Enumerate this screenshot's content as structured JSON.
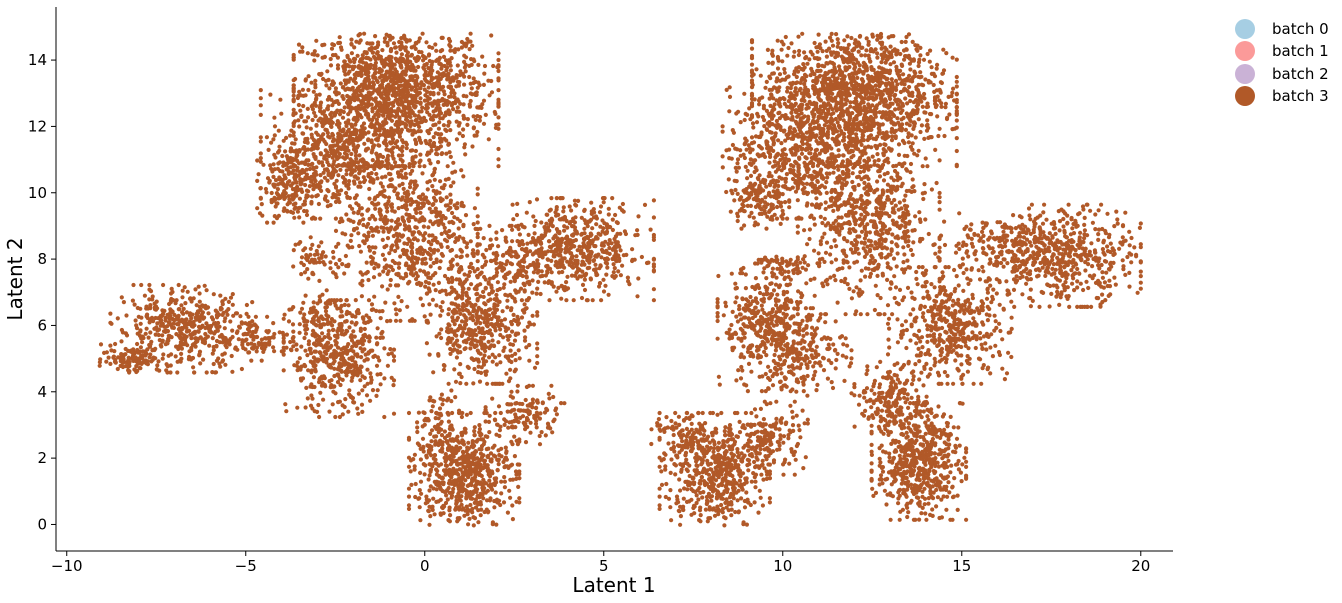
{
  "chart_data": {
    "type": "scatter",
    "title": "",
    "xlabel": "Latent 1",
    "ylabel": "Latent 2",
    "xlim": [
      -10.3,
      20.9
    ],
    "ylim": [
      -0.8,
      15.6
    ],
    "xticks": [
      -10,
      -5,
      0,
      5,
      10,
      15,
      20
    ],
    "xtick_labels": [
      "−10",
      "−5",
      "0",
      "5",
      "10",
      "15",
      "20"
    ],
    "yticks": [
      0,
      2,
      4,
      6,
      8,
      10,
      12,
      14
    ],
    "ytick_labels": [
      "0",
      "2",
      "4",
      "6",
      "8",
      "10",
      "12",
      "14"
    ],
    "grid": false,
    "legend_position": "top-right, outside plot",
    "series": [
      {
        "name": "batch 0",
        "color": "#a6cee3",
        "points": []
      },
      {
        "name": "batch 1",
        "color": "#fb9a99",
        "points": []
      },
      {
        "name": "batch 2",
        "color": "#cab2d6",
        "points": []
      },
      {
        "name": "batch 3",
        "color": "#b15928",
        "points": [],
        "clusters": [
          {
            "cx": -0.8,
            "cy": 13.0,
            "sx": 1.3,
            "sy": 1.0,
            "n": 1400
          },
          {
            "cx": -2.6,
            "cy": 11.2,
            "sx": 0.9,
            "sy": 0.9,
            "n": 500
          },
          {
            "cx": -3.8,
            "cy": 10.2,
            "sx": 0.4,
            "sy": 0.5,
            "n": 160
          },
          {
            "cx": -0.5,
            "cy": 9.0,
            "sx": 0.9,
            "sy": 1.3,
            "n": 700
          },
          {
            "cx": 4.2,
            "cy": 8.3,
            "sx": 1.0,
            "sy": 0.7,
            "n": 550
          },
          {
            "cx": 2.3,
            "cy": 7.9,
            "sx": 0.7,
            "sy": 0.5,
            "n": 120
          },
          {
            "cx": 1.6,
            "cy": 6.0,
            "sx": 0.7,
            "sy": 0.8,
            "n": 450
          },
          {
            "cx": -6.8,
            "cy": 5.9,
            "sx": 0.9,
            "sy": 0.6,
            "n": 450
          },
          {
            "cx": -8.2,
            "cy": 5.0,
            "sx": 0.4,
            "sy": 0.2,
            "n": 90
          },
          {
            "cx": -4.6,
            "cy": 5.6,
            "sx": 0.6,
            "sy": 0.3,
            "n": 100
          },
          {
            "cx": -2.4,
            "cy": 5.0,
            "sx": 0.7,
            "sy": 0.8,
            "n": 450
          },
          {
            "cx": -3.0,
            "cy": 8.0,
            "sx": 0.4,
            "sy": 0.3,
            "n": 60
          },
          {
            "cx": -2.9,
            "cy": 6.4,
            "sx": 0.4,
            "sy": 0.3,
            "n": 60
          },
          {
            "cx": 1.1,
            "cy": 1.6,
            "sx": 0.7,
            "sy": 0.8,
            "n": 650
          },
          {
            "cx": 2.8,
            "cy": 3.3,
            "sx": 0.5,
            "sy": 0.4,
            "n": 120
          },
          {
            "cx": 0.3,
            "cy": 3.2,
            "sx": 0.3,
            "sy": 0.5,
            "n": 50
          },
          {
            "cx": 12.0,
            "cy": 13.0,
            "sx": 1.3,
            "sy": 1.0,
            "n": 1400
          },
          {
            "cx": 10.3,
            "cy": 11.2,
            "sx": 0.9,
            "sy": 0.9,
            "n": 500
          },
          {
            "cx": 9.3,
            "cy": 9.8,
            "sx": 0.4,
            "sy": 0.4,
            "n": 120
          },
          {
            "cx": 12.4,
            "cy": 9.2,
            "sx": 0.9,
            "sy": 1.3,
            "n": 700
          },
          {
            "cx": 17.8,
            "cy": 8.1,
            "sx": 1.0,
            "sy": 0.7,
            "n": 550
          },
          {
            "cx": 15.8,
            "cy": 8.5,
            "sx": 0.7,
            "sy": 0.4,
            "n": 120
          },
          {
            "cx": 14.7,
            "cy": 6.0,
            "sx": 0.8,
            "sy": 0.8,
            "n": 450
          },
          {
            "cx": 9.5,
            "cy": 6.0,
            "sx": 0.6,
            "sy": 0.9,
            "n": 380
          },
          {
            "cx": 10.6,
            "cy": 5.2,
            "sx": 0.6,
            "sy": 0.6,
            "n": 200
          },
          {
            "cx": 10.0,
            "cy": 7.8,
            "sx": 0.3,
            "sy": 0.2,
            "n": 40
          },
          {
            "cx": 8.1,
            "cy": 1.6,
            "sx": 0.7,
            "sy": 0.8,
            "n": 550
          },
          {
            "cx": 9.6,
            "cy": 2.6,
            "sx": 0.5,
            "sy": 0.5,
            "n": 150
          },
          {
            "cx": 13.8,
            "cy": 1.9,
            "sx": 0.6,
            "sy": 0.8,
            "n": 550
          },
          {
            "cx": 13.1,
            "cy": 3.8,
            "sx": 0.5,
            "sy": 0.5,
            "n": 200
          },
          {
            "cx": 7.2,
            "cy": 2.7,
            "sx": 0.4,
            "sy": 0.3,
            "n": 60
          }
        ]
      }
    ]
  }
}
